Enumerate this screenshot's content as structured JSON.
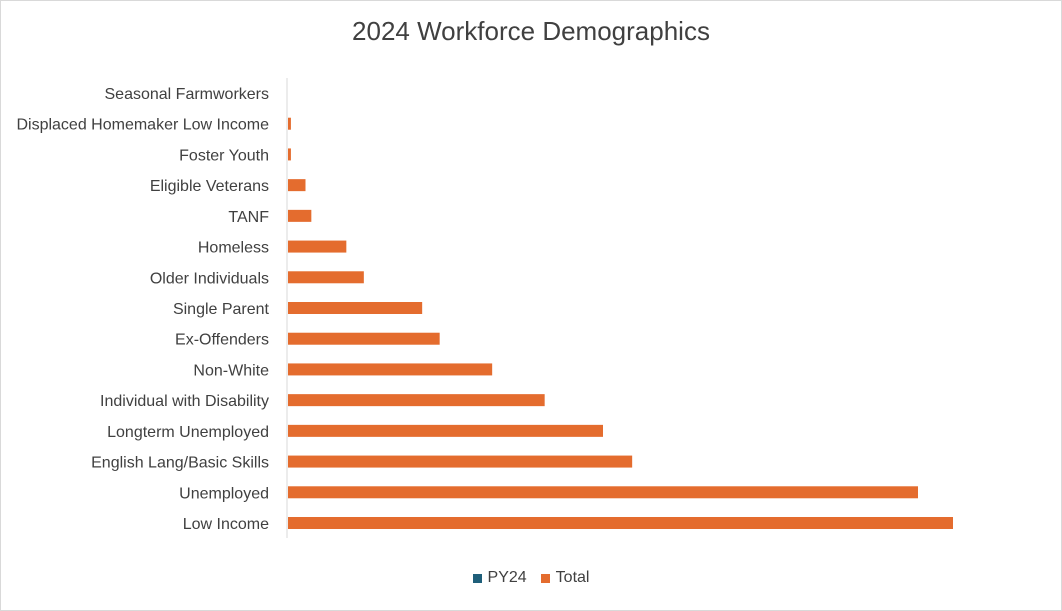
{
  "chart_data": {
    "type": "bar",
    "orientation": "horizontal",
    "title": "2024 Workforce Demographics",
    "xlabel": "",
    "ylabel": "",
    "categories": [
      "Seasonal Farmworkers",
      "Displaced Homemaker Low Income",
      "Foster Youth",
      "Eligible Veterans",
      "TANF",
      "Homeless",
      "Older Individuals",
      "Single Parent",
      "Ex-Offenders",
      "Non-White",
      "Individual with Disability",
      "Longterm Unemployed",
      "English Lang/Basic Skills",
      "Unemployed",
      "Low Income"
    ],
    "series": [
      {
        "name": "PY24",
        "color": "#1f5f7a",
        "values": [
          0,
          0,
          0,
          0,
          0,
          0,
          0,
          0,
          0,
          0,
          0,
          0,
          0,
          0,
          0
        ]
      },
      {
        "name": "Total",
        "color": "#e46c2e",
        "values": [
          0,
          0.5,
          0.5,
          3,
          4,
          10,
          13,
          23,
          26,
          35,
          44,
          54,
          59,
          108,
          114
        ]
      }
    ],
    "xlim": [
      0,
      120
    ],
    "grid": false,
    "legend_position": "bottom"
  }
}
